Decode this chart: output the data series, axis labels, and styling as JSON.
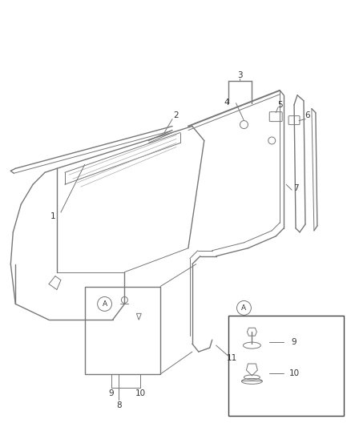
{
  "bg_color": "#ffffff",
  "lc": "#777777",
  "lc_dark": "#444444",
  "fs_label": 7.5,
  "figsize": [
    4.38,
    5.33
  ],
  "dpi": 100,
  "xlim": [
    0,
    438
  ],
  "ylim": [
    0,
    533
  ]
}
